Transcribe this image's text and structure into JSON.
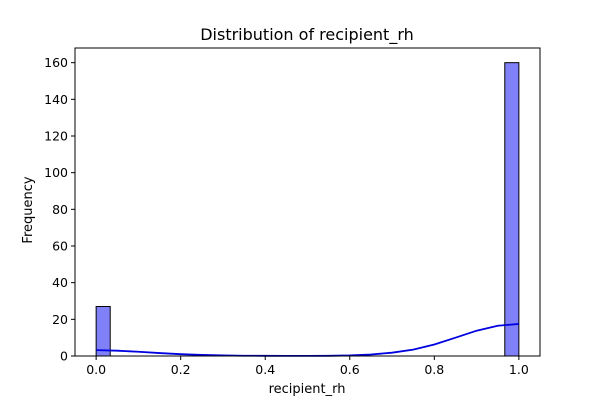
{
  "chart_data": {
    "type": "bar",
    "title": "Distribution of recipient_rh",
    "xlabel": "recipient_rh",
    "ylabel": "Frequency",
    "xlim": [
      -0.05,
      1.05
    ],
    "ylim": [
      0,
      168
    ],
    "xticks": [
      0.0,
      0.2,
      0.4,
      0.6,
      0.8,
      1.0
    ],
    "xtick_labels": [
      "0.0",
      "0.2",
      "0.4",
      "0.6",
      "0.8",
      "1.0"
    ],
    "yticks": [
      0,
      20,
      40,
      60,
      80,
      100,
      120,
      140,
      160
    ],
    "ytick_labels": [
      "0",
      "20",
      "40",
      "60",
      "80",
      "100",
      "120",
      "140",
      "160"
    ],
    "grid": false,
    "bins": [
      {
        "x0": 0.0,
        "x1": 0.0333,
        "count": 27
      },
      {
        "x0": 0.9667,
        "x1": 1.0,
        "count": 160
      }
    ],
    "kde": {
      "x": [
        0.0,
        0.05,
        0.1,
        0.15,
        0.2,
        0.25,
        0.3,
        0.35,
        0.4,
        0.45,
        0.5,
        0.55,
        0.6,
        0.65,
        0.7,
        0.75,
        0.8,
        0.85,
        0.9,
        0.95,
        1.0
      ],
      "y": [
        3.2,
        2.9,
        2.3,
        1.6,
        1.0,
        0.6,
        0.3,
        0.15,
        0.1,
        0.08,
        0.08,
        0.1,
        0.3,
        0.8,
        1.8,
        3.5,
        6.3,
        10.0,
        13.8,
        16.5,
        17.5
      ]
    },
    "colors": {
      "bar_fill": "#8080f8",
      "bar_stroke": "#000000",
      "kde_line": "#0000e0"
    }
  }
}
